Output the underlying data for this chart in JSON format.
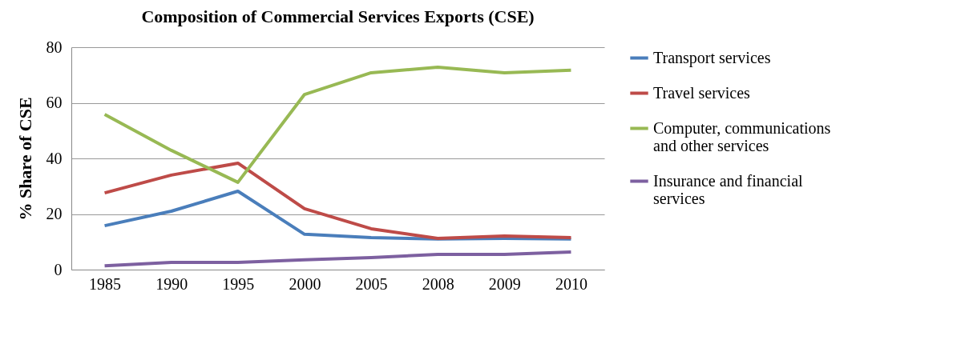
{
  "chart_data": {
    "type": "line",
    "title": "Composition of Commercial Services Exports (CSE)",
    "ylabel": "% Share of CSE",
    "categories": [
      "1985",
      "1990",
      "1995",
      "2000",
      "2005",
      "2008",
      "2009",
      "2010"
    ],
    "series": [
      {
        "name": "Transport services",
        "color": "#4a7ebb",
        "values": [
          15.8,
          21,
          28.2,
          12.7,
          11.5,
          11,
          11.2,
          11
        ]
      },
      {
        "name": "Travel services",
        "color": "#be4b48",
        "values": [
          27.6,
          34,
          38.3,
          21.9,
          14.7,
          11.2,
          12.1,
          11.5
        ]
      },
      {
        "name": "Computer, communications and other services",
        "color": "#98b954",
        "values": [
          55.8,
          42.9,
          31.4,
          63,
          70.8,
          72.8,
          70.8,
          71.7
        ]
      },
      {
        "name": "Insurance and financial services",
        "color": "#7d60a0",
        "values": [
          1.4,
          2.6,
          2.6,
          3.5,
          4.3,
          5.5,
          5.5,
          6.3
        ]
      }
    ],
    "ylim": [
      0,
      80
    ],
    "yticks": [
      0,
      20,
      40,
      60,
      80
    ],
    "grid": "y",
    "legend": "right",
    "marker": "none",
    "line_style": "solid"
  }
}
